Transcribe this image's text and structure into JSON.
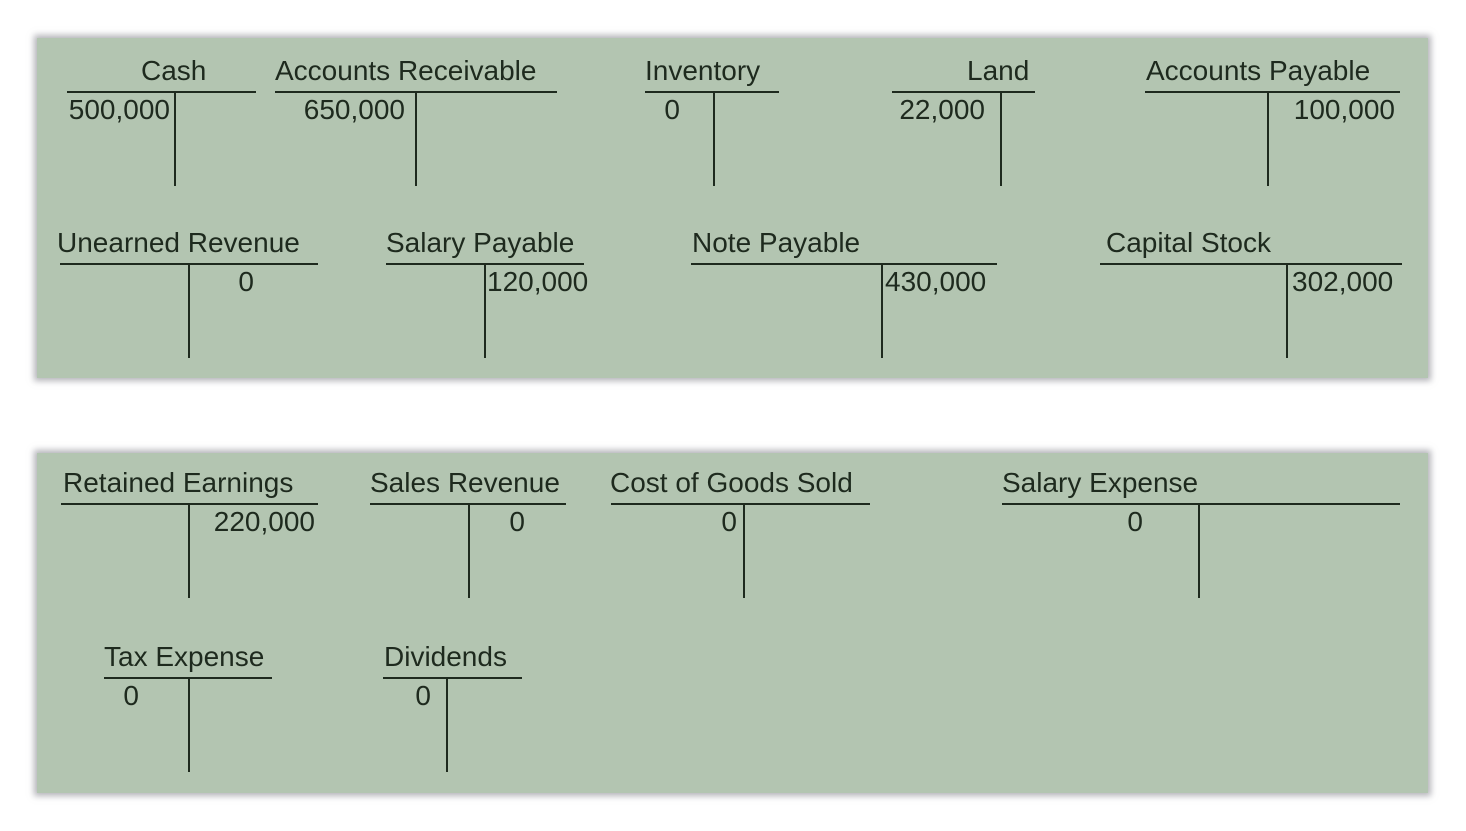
{
  "panels": [
    {
      "accounts": [
        {
          "title": "Cash",
          "debit": "500,000",
          "credit": ""
        },
        {
          "title": "Accounts Receivable",
          "debit": "650,000",
          "credit": ""
        },
        {
          "title": "Inventory",
          "debit": "0",
          "credit": ""
        },
        {
          "title": "Land",
          "debit": "22,000",
          "credit": ""
        },
        {
          "title": "Accounts Payable",
          "debit": "",
          "credit": "100,000"
        },
        {
          "title": "Unearned Revenue",
          "debit": "",
          "credit": "0"
        },
        {
          "title": "Salary Payable",
          "debit": "",
          "credit": "120,000"
        },
        {
          "title": "Note Payable",
          "debit": "",
          "credit": "430,000"
        },
        {
          "title": "Capital Stock",
          "debit": "",
          "credit": "302,000"
        }
      ]
    },
    {
      "accounts": [
        {
          "title": "Retained Earnings",
          "debit": "",
          "credit": "220,000"
        },
        {
          "title": "Sales Revenue",
          "debit": "",
          "credit": "0"
        },
        {
          "title": "Cost of Goods Sold",
          "debit": "0",
          "credit": ""
        },
        {
          "title": "Salary Expense",
          "debit": "0",
          "credit": ""
        },
        {
          "title": "Tax Expense",
          "debit": "0",
          "credit": ""
        },
        {
          "title": "Dividends",
          "debit": "0",
          "credit": ""
        }
      ]
    }
  ],
  "colors": {
    "panel": "#b3c5b1",
    "ink": "#1e2a1e"
  }
}
